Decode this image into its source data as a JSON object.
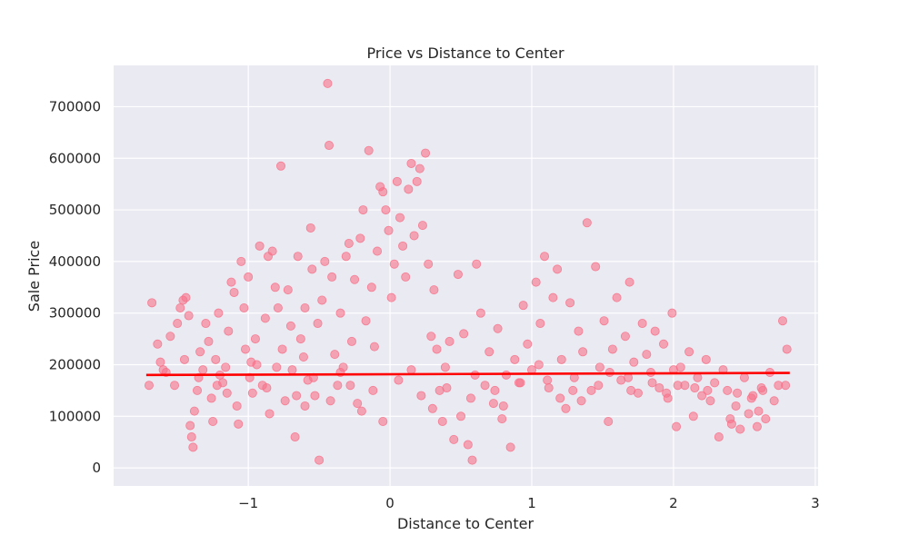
{
  "chart_data": {
    "type": "scatter",
    "title": "Price vs Distance to Center",
    "xlabel": "Distance to Center",
    "ylabel": "Sale Price",
    "xlim": [
      -1.95,
      3.02
    ],
    "ylim": [
      -35000,
      780000
    ],
    "x_ticks": [
      -1,
      0,
      1,
      2,
      3
    ],
    "x_tick_labels": [
      "−1",
      "0",
      "1",
      "2",
      "3"
    ],
    "y_ticks": [
      0,
      100000,
      200000,
      300000,
      400000,
      500000,
      600000,
      700000
    ],
    "y_tick_labels": [
      "0",
      "100000",
      "200000",
      "300000",
      "400000",
      "500000",
      "600000",
      "700000"
    ],
    "grid": true,
    "background": "#eaeaf2",
    "point_color": "#f77189",
    "fit_line_color": "#ff0000",
    "series": [
      {
        "kind": "scatter",
        "points": [
          [
            -1.68,
            320000
          ],
          [
            -1.64,
            240000
          ],
          [
            -1.62,
            205000
          ],
          [
            -1.58,
            185000
          ],
          [
            -1.55,
            255000
          ],
          [
            -1.52,
            160000
          ],
          [
            -1.5,
            280000
          ],
          [
            -1.48,
            310000
          ],
          [
            -1.46,
            325000
          ],
          [
            -1.44,
            330000
          ],
          [
            -1.42,
            295000
          ],
          [
            -1.41,
            82000
          ],
          [
            -1.4,
            60000
          ],
          [
            -1.39,
            40000
          ],
          [
            -1.38,
            110000
          ],
          [
            -1.36,
            150000
          ],
          [
            -1.34,
            225000
          ],
          [
            -1.32,
            190000
          ],
          [
            -1.3,
            280000
          ],
          [
            -1.28,
            245000
          ],
          [
            -1.26,
            135000
          ],
          [
            -1.25,
            90000
          ],
          [
            -1.23,
            210000
          ],
          [
            -1.21,
            300000
          ],
          [
            -1.2,
            180000
          ],
          [
            -1.18,
            165000
          ],
          [
            -1.16,
            195000
          ],
          [
            -1.14,
            265000
          ],
          [
            -1.12,
            360000
          ],
          [
            -1.1,
            340000
          ],
          [
            -1.08,
            120000
          ],
          [
            -1.07,
            85000
          ],
          [
            -1.05,
            400000
          ],
          [
            -1.03,
            310000
          ],
          [
            -1.02,
            230000
          ],
          [
            -1.0,
            370000
          ],
          [
            -0.99,
            175000
          ],
          [
            -0.97,
            145000
          ],
          [
            -0.95,
            250000
          ],
          [
            -0.94,
            200000
          ],
          [
            -0.92,
            430000
          ],
          [
            -0.9,
            160000
          ],
          [
            -0.88,
            290000
          ],
          [
            -0.86,
            410000
          ],
          [
            -0.85,
            105000
          ],
          [
            -0.83,
            420000
          ],
          [
            -0.81,
            350000
          ],
          [
            -0.79,
            310000
          ],
          [
            -0.77,
            585000
          ],
          [
            -0.76,
            230000
          ],
          [
            -0.74,
            130000
          ],
          [
            -0.72,
            345000
          ],
          [
            -0.7,
            275000
          ],
          [
            -0.69,
            190000
          ],
          [
            -0.67,
            60000
          ],
          [
            -0.65,
            410000
          ],
          [
            -0.63,
            250000
          ],
          [
            -0.61,
            215000
          ],
          [
            -0.6,
            310000
          ],
          [
            -0.58,
            170000
          ],
          [
            -0.56,
            465000
          ],
          [
            -0.55,
            385000
          ],
          [
            -0.53,
            140000
          ],
          [
            -0.51,
            280000
          ],
          [
            -0.5,
            15000
          ],
          [
            -0.48,
            325000
          ],
          [
            -0.46,
            400000
          ],
          [
            -0.44,
            745000
          ],
          [
            -0.43,
            625000
          ],
          [
            -0.41,
            370000
          ],
          [
            -0.39,
            220000
          ],
          [
            -0.37,
            160000
          ],
          [
            -0.35,
            300000
          ],
          [
            -0.33,
            195000
          ],
          [
            -0.31,
            410000
          ],
          [
            -0.29,
            435000
          ],
          [
            -0.27,
            245000
          ],
          [
            -0.25,
            365000
          ],
          [
            -0.23,
            125000
          ],
          [
            -0.21,
            445000
          ],
          [
            -0.19,
            500000
          ],
          [
            -0.17,
            285000
          ],
          [
            -0.15,
            615000
          ],
          [
            -0.13,
            350000
          ],
          [
            -0.11,
            235000
          ],
          [
            -0.09,
            420000
          ],
          [
            -0.07,
            545000
          ],
          [
            -0.05,
            535000
          ],
          [
            -0.03,
            500000
          ],
          [
            -0.01,
            460000
          ],
          [
            0.01,
            330000
          ],
          [
            0.03,
            395000
          ],
          [
            0.05,
            555000
          ],
          [
            0.07,
            485000
          ],
          [
            0.09,
            430000
          ],
          [
            0.11,
            370000
          ],
          [
            0.13,
            540000
          ],
          [
            0.15,
            590000
          ],
          [
            0.17,
            450000
          ],
          [
            0.19,
            555000
          ],
          [
            0.21,
            580000
          ],
          [
            0.23,
            470000
          ],
          [
            0.25,
            610000
          ],
          [
            0.27,
            395000
          ],
          [
            0.29,
            255000
          ],
          [
            0.31,
            345000
          ],
          [
            0.33,
            230000
          ],
          [
            0.35,
            150000
          ],
          [
            0.37,
            90000
          ],
          [
            0.39,
            195000
          ],
          [
            0.42,
            245000
          ],
          [
            0.45,
            55000
          ],
          [
            0.48,
            375000
          ],
          [
            0.52,
            260000
          ],
          [
            0.55,
            45000
          ],
          [
            0.58,
            15000
          ],
          [
            0.61,
            395000
          ],
          [
            0.64,
            300000
          ],
          [
            0.67,
            160000
          ],
          [
            0.7,
            225000
          ],
          [
            0.73,
            125000
          ],
          [
            0.76,
            270000
          ],
          [
            0.79,
            95000
          ],
          [
            0.82,
            180000
          ],
          [
            0.85,
            40000
          ],
          [
            0.88,
            210000
          ],
          [
            0.91,
            165000
          ],
          [
            0.94,
            315000
          ],
          [
            0.97,
            240000
          ],
          [
            1.0,
            190000
          ],
          [
            1.03,
            360000
          ],
          [
            1.06,
            280000
          ],
          [
            1.09,
            410000
          ],
          [
            1.12,
            155000
          ],
          [
            1.15,
            330000
          ],
          [
            1.18,
            385000
          ],
          [
            1.21,
            210000
          ],
          [
            1.24,
            115000
          ],
          [
            1.27,
            320000
          ],
          [
            1.3,
            175000
          ],
          [
            1.33,
            265000
          ],
          [
            1.36,
            225000
          ],
          [
            1.39,
            475000
          ],
          [
            1.42,
            150000
          ],
          [
            1.45,
            390000
          ],
          [
            1.48,
            195000
          ],
          [
            1.51,
            285000
          ],
          [
            1.54,
            90000
          ],
          [
            1.57,
            230000
          ],
          [
            1.6,
            330000
          ],
          [
            1.63,
            170000
          ],
          [
            1.66,
            255000
          ],
          [
            1.69,
            360000
          ],
          [
            1.72,
            205000
          ],
          [
            1.75,
            145000
          ],
          [
            1.78,
            280000
          ],
          [
            1.81,
            220000
          ],
          [
            1.84,
            185000
          ],
          [
            1.87,
            265000
          ],
          [
            1.9,
            155000
          ],
          [
            1.93,
            240000
          ],
          [
            1.96,
            135000
          ],
          [
            1.99,
            300000
          ],
          [
            2.02,
            80000
          ],
          [
            2.05,
            195000
          ],
          [
            2.08,
            160000
          ],
          [
            2.11,
            225000
          ],
          [
            2.14,
            100000
          ],
          [
            2.17,
            175000
          ],
          [
            2.2,
            140000
          ],
          [
            2.23,
            210000
          ],
          [
            2.26,
            130000
          ],
          [
            2.29,
            165000
          ],
          [
            2.32,
            60000
          ],
          [
            2.35,
            190000
          ],
          [
            2.38,
            150000
          ],
          [
            2.41,
            85000
          ],
          [
            2.44,
            120000
          ],
          [
            2.47,
            75000
          ],
          [
            2.5,
            175000
          ],
          [
            2.53,
            105000
          ],
          [
            2.56,
            140000
          ],
          [
            2.59,
            80000
          ],
          [
            2.62,
            155000
          ],
          [
            2.65,
            95000
          ],
          [
            2.68,
            185000
          ],
          [
            2.71,
            130000
          ],
          [
            2.74,
            160000
          ],
          [
            2.77,
            285000
          ],
          [
            2.8,
            230000
          ],
          [
            -1.6,
            190000
          ],
          [
            -1.35,
            175000
          ],
          [
            -1.15,
            145000
          ],
          [
            -0.98,
            205000
          ],
          [
            -0.87,
            155000
          ],
          [
            -0.66,
            140000
          ],
          [
            -0.54,
            175000
          ],
          [
            -0.42,
            130000
          ],
          [
            -0.28,
            160000
          ],
          [
            -0.12,
            150000
          ],
          [
            0.06,
            170000
          ],
          [
            0.22,
            140000
          ],
          [
            0.4,
            155000
          ],
          [
            0.57,
            135000
          ],
          [
            0.74,
            150000
          ],
          [
            0.92,
            165000
          ],
          [
            1.11,
            170000
          ],
          [
            1.29,
            150000
          ],
          [
            1.47,
            160000
          ],
          [
            1.68,
            175000
          ],
          [
            1.85,
            165000
          ],
          [
            2.03,
            160000
          ],
          [
            2.24,
            150000
          ],
          [
            2.45,
            145000
          ],
          [
            2.63,
            150000
          ],
          [
            2.79,
            160000
          ],
          [
            -1.45,
            210000
          ],
          [
            -1.22,
            160000
          ],
          [
            -0.8,
            195000
          ],
          [
            -0.35,
            185000
          ],
          [
            0.15,
            190000
          ],
          [
            0.6,
            180000
          ],
          [
            1.05,
            200000
          ],
          [
            1.55,
            185000
          ],
          [
            2.0,
            190000
          ],
          [
            2.55,
            135000
          ],
          [
            -0.6,
            120000
          ],
          [
            -0.2,
            110000
          ],
          [
            0.3,
            115000
          ],
          [
            0.8,
            120000
          ],
          [
            1.2,
            135000
          ],
          [
            1.7,
            150000
          ],
          [
            2.15,
            155000
          ],
          [
            2.6,
            110000
          ],
          [
            -1.7,
            160000
          ],
          [
            -0.05,
            90000
          ],
          [
            0.5,
            100000
          ],
          [
            1.35,
            130000
          ],
          [
            1.95,
            145000
          ],
          [
            2.4,
            95000
          ]
        ]
      },
      {
        "kind": "fit_line",
        "x": [
          -1.72,
          2.82
        ],
        "y": [
          180000,
          184000
        ]
      }
    ]
  }
}
